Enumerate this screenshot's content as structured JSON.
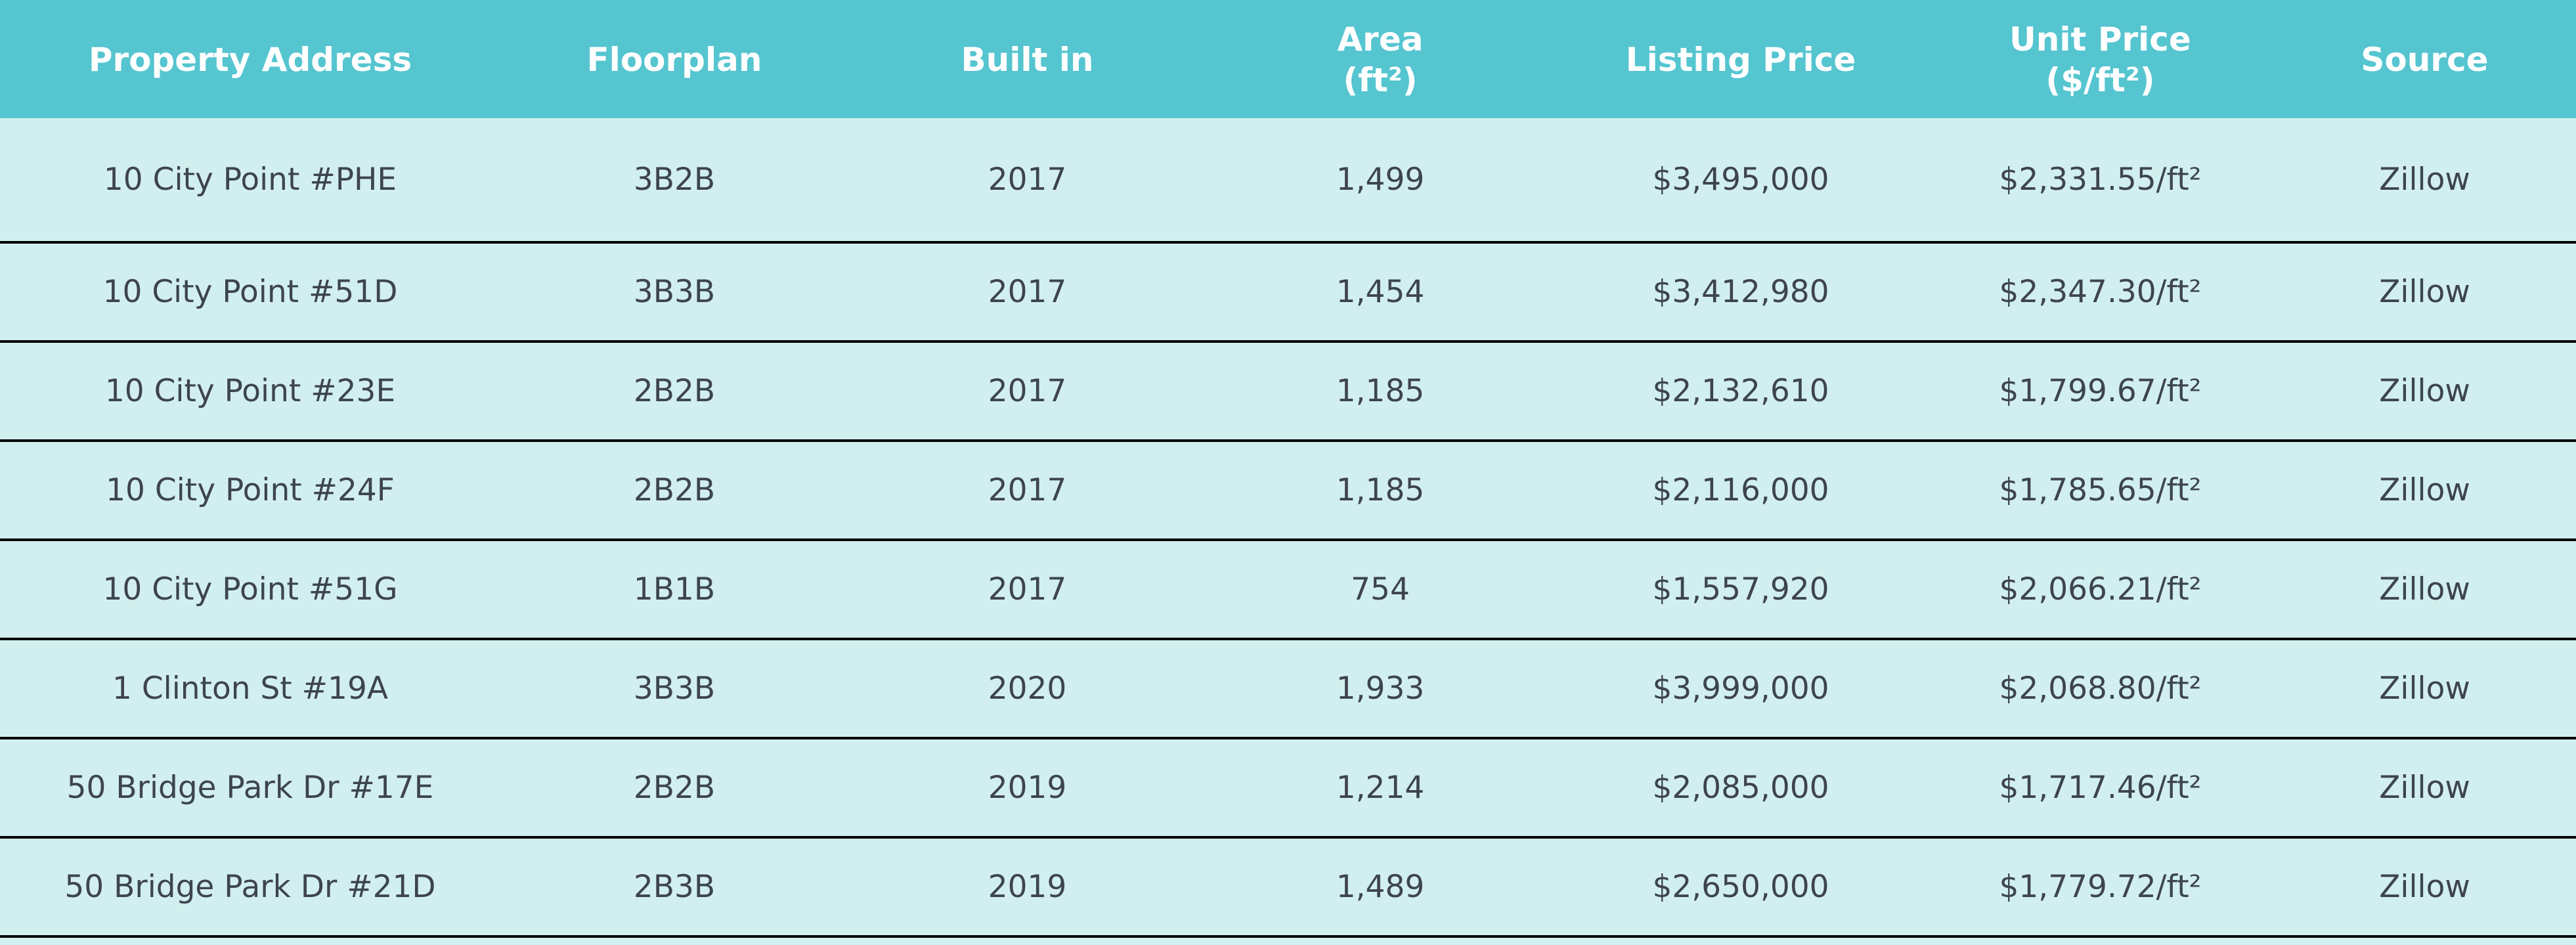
{
  "table": {
    "headers": [
      [
        "Property Address"
      ],
      [
        "Floorplan"
      ],
      [
        "Built in"
      ],
      [
        "Area",
        "(ft²)"
      ],
      [
        "Listing Price"
      ],
      [
        "Unit Price",
        "($/ft²)"
      ],
      [
        "Source"
      ]
    ],
    "rows": [
      [
        "10 City Point #PHE",
        "3B2B",
        "2017",
        "1,499",
        "$3,495,000",
        "$2,331.55/ft²",
        "Zillow"
      ],
      [
        "10 City Point #51D",
        "3B3B",
        "2017",
        "1,454",
        "$3,412,980",
        "$2,347.30/ft²",
        "Zillow"
      ],
      [
        "10 City Point #23E",
        "2B2B",
        "2017",
        "1,185",
        "$2,132,610",
        "$1,799.67/ft²",
        "Zillow"
      ],
      [
        "10 City Point #24F",
        "2B2B",
        "2017",
        "1,185",
        "$2,116,000",
        "$1,785.65/ft²",
        "Zillow"
      ],
      [
        "10 City Point #51G",
        "1B1B",
        "2017",
        "754",
        "$1,557,920",
        "$2,066.21/ft²",
        "Zillow"
      ],
      [
        "1 Clinton St #19A",
        "3B3B",
        "2020",
        "1,933",
        "$3,999,000",
        "$2,068.80/ft²",
        "Zillow"
      ],
      [
        "50 Bridge Park Dr #17E",
        "2B2B",
        "2019",
        "1,214",
        "$2,085,000",
        "$1,717.46/ft²",
        "Zillow"
      ],
      [
        "50 Bridge Park Dr #21D",
        "2B3B",
        "2019",
        "1,489",
        "$2,650,000",
        "$1,779.72/ft²",
        "Zillow"
      ]
    ]
  },
  "colors": {
    "header_bg": "#55c5d0",
    "header_text": "#ffffff",
    "row_bg": "#d2efef",
    "cell_text": "#3d4450",
    "row_divider": "#000000"
  }
}
